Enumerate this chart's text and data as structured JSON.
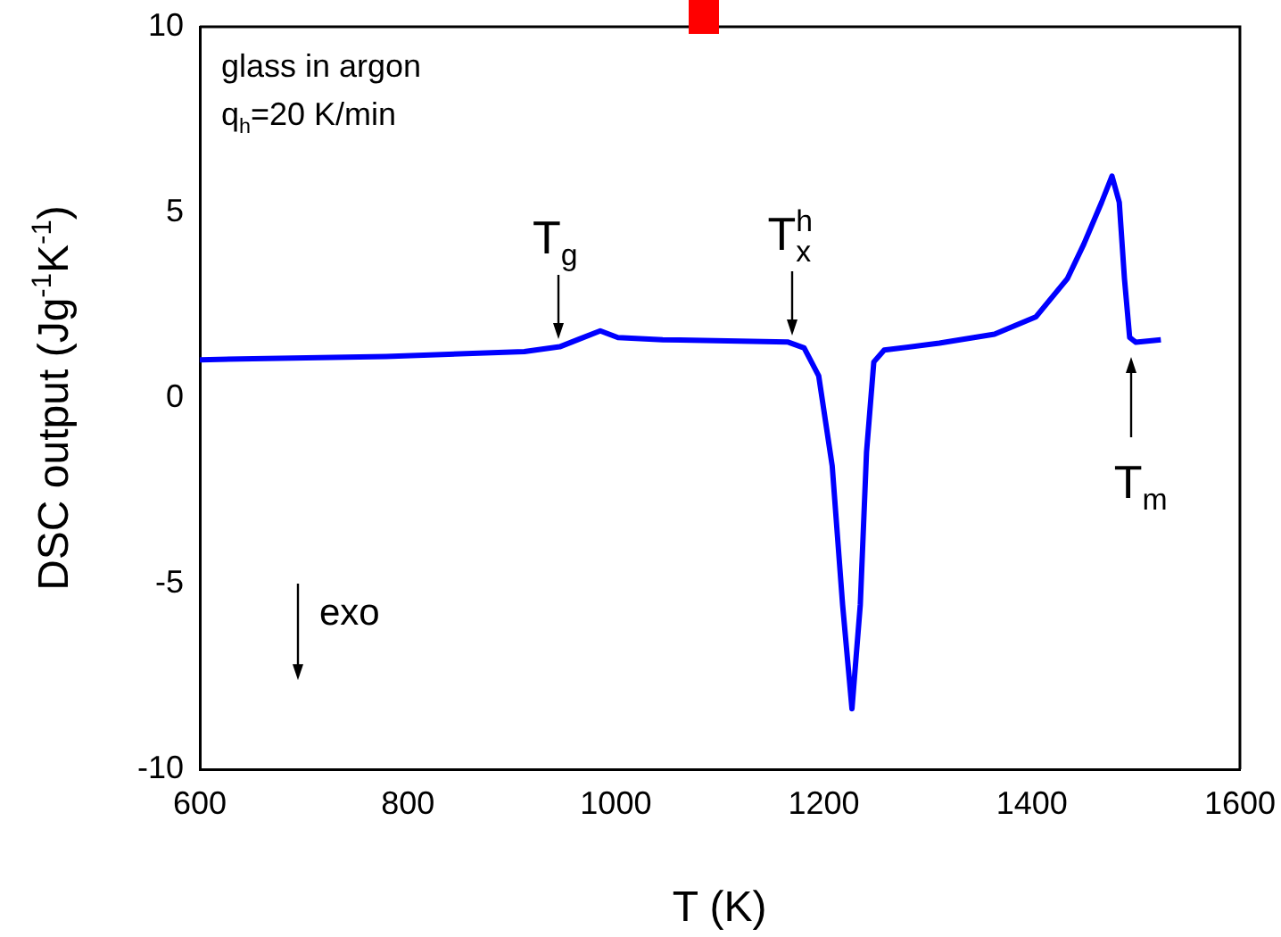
{
  "chart_data": {
    "type": "line",
    "xlabel": "T (K)",
    "ylabel": "DSC output (Jg$^{-1}$K$^{-1}$)",
    "x": [
      600,
      779,
      912,
      946,
      965,
      985,
      1002,
      1045,
      1165,
      1181,
      1195,
      1208,
      1218,
      1227,
      1235,
      1241,
      1248,
      1258,
      1311,
      1364,
      1404,
      1434,
      1450,
      1467,
      1477,
      1484,
      1489,
      1494,
      1500,
      1524
    ],
    "series": [
      {
        "color": "#0000ff",
        "values": [
          1.03,
          1.12,
          1.25,
          1.38,
          1.59,
          1.81,
          1.63,
          1.57,
          1.51,
          1.35,
          0.6,
          -1.83,
          -5.57,
          -8.37,
          -5.57,
          -1.46,
          0.97,
          1.29,
          1.48,
          1.72,
          2.19,
          3.21,
          4.15,
          5.27,
          5.98,
          5.27,
          3.21,
          1.63,
          1.5,
          1.57
        ]
      }
    ],
    "xlim": [
      600,
      1600
    ],
    "xticks": [
      600,
      800,
      1000,
      1200,
      1400,
      1600
    ],
    "ylim": [
      -10,
      10
    ],
    "yticks": [
      -10,
      -5,
      0,
      5,
      10
    ],
    "grid": false,
    "legend": false,
    "marker": "none",
    "line_style": "solid",
    "annotations": [
      "glass in argon",
      "q$_{h}$=20 K/min",
      "exo",
      {
        "text": "T$_{g}$",
        "x": 944,
        "y": 1.4
      },
      {
        "text": "T$^{h}$$_{x}$",
        "x": 1170,
        "y": 1.5
      },
      {
        "text": "T$_{m}$",
        "x": 1496,
        "y": 1.25
      }
    ]
  }
}
